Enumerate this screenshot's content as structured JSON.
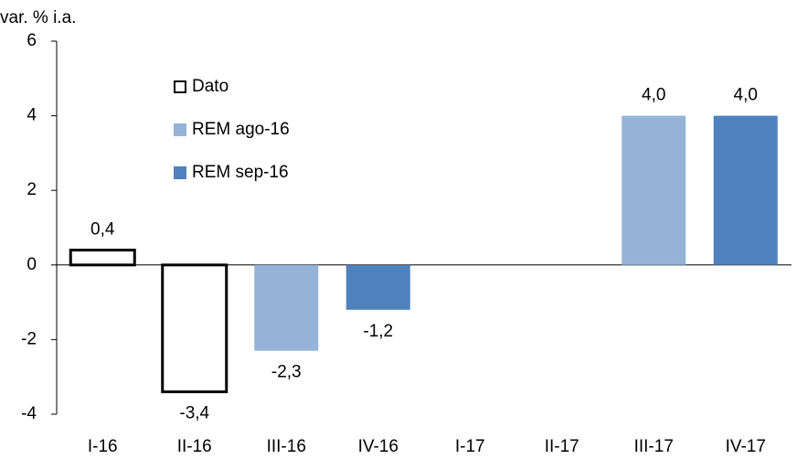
{
  "chart_data": {
    "type": "bar",
    "y_axis_label": "var. % i.a.",
    "categories": [
      "I-16",
      "II-16",
      "III-16",
      "IV-16",
      "I-17",
      "II-17",
      "III-17",
      "IV-17"
    ],
    "series": [
      {
        "name": "Dato",
        "color": "#ffffff",
        "stroke": "#000000",
        "values": [
          0.4,
          -3.4,
          null,
          null,
          null,
          null,
          null,
          null
        ],
        "value_labels": [
          "0,4",
          "-3,4",
          null,
          null,
          null,
          null,
          null,
          null
        ]
      },
      {
        "name": "REM ago-16",
        "color": "#95b3d7",
        "values": [
          null,
          null,
          -2.3,
          null,
          null,
          null,
          4.0,
          null
        ],
        "value_labels": [
          null,
          null,
          "-2,3",
          null,
          null,
          null,
          "4,0",
          null
        ]
      },
      {
        "name": "REM sep-16",
        "color": "#4f81bd",
        "values": [
          null,
          null,
          null,
          -1.2,
          null,
          null,
          null,
          4.0
        ],
        "value_labels": [
          null,
          null,
          null,
          "-1,2",
          null,
          null,
          null,
          "4,0"
        ]
      }
    ],
    "ylim": [
      -4,
      6
    ],
    "yticks": [
      -4,
      -2,
      0,
      2,
      4,
      6
    ],
    "grid": false,
    "legend": "top-left"
  }
}
